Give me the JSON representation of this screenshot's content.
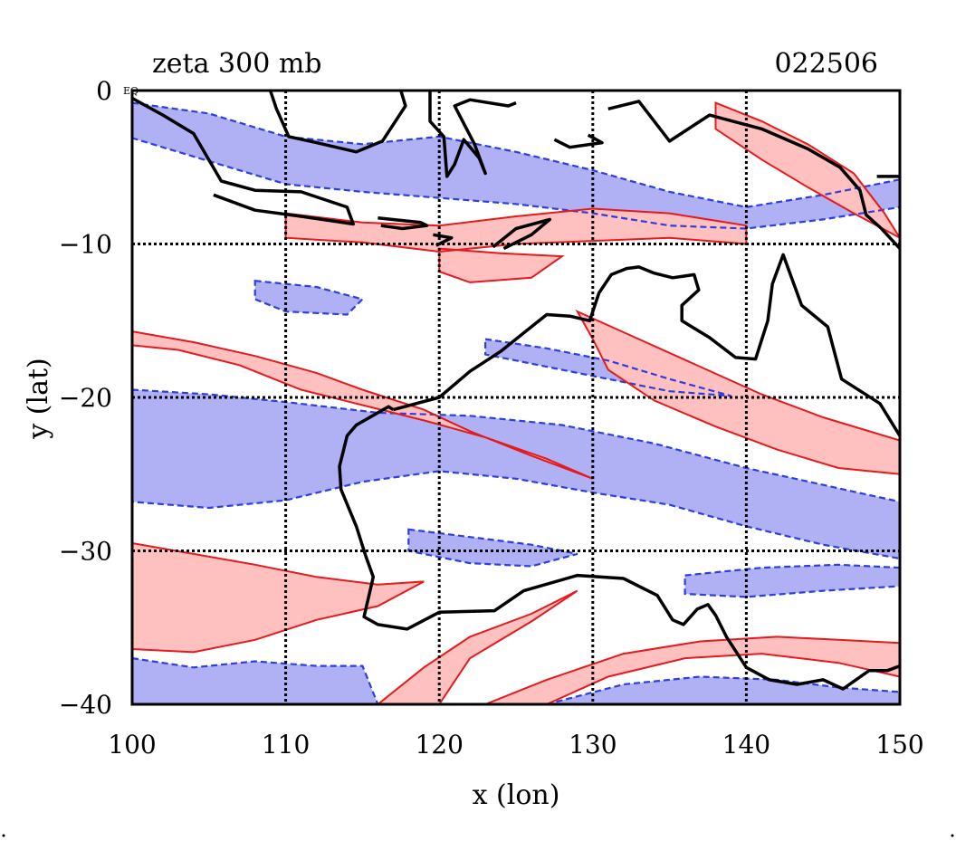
{
  "chart_data": {
    "type": "contour",
    "title_left": "zeta 300 mb",
    "title_right": "022506",
    "xlabel": "x (lon)",
    "ylabel": "y (lat)",
    "xlim": [
      100,
      150
    ],
    "ylim": [
      -40,
      0
    ],
    "x_ticks": [
      100,
      110,
      120,
      130,
      140,
      150
    ],
    "y_ticks": [
      0,
      -10,
      -20,
      -30,
      -40
    ],
    "x_tick_labels": [
      "100",
      "110",
      "120",
      "130",
      "140",
      "150"
    ],
    "y_tick_labels": [
      "0",
      "−10",
      "−20",
      "−30",
      "−40"
    ],
    "corner_label": "EQ",
    "grid": true,
    "positive_color": "#e41a1c",
    "positive_fill": "#ffc0c0",
    "negative_color": "#2c3ee0",
    "negative_fill": "#b0b0f4",
    "coastline_color": "#000000",
    "positive_bands": [
      [
        [
          100,
          -15.7
        ],
        [
          104,
          -16.4
        ],
        [
          108,
          -17.3
        ],
        [
          112,
          -18.4
        ],
        [
          115,
          -19.5
        ],
        [
          119,
          -20.8
        ],
        [
          122,
          -22.2
        ],
        [
          126,
          -23.8
        ],
        [
          130,
          -25.3
        ],
        [
          127,
          -24.0
        ],
        [
          123,
          -22.6
        ],
        [
          119,
          -21.5
        ],
        [
          115,
          -20.5
        ],
        [
          111,
          -19.5
        ],
        [
          107,
          -17.9
        ],
        [
          103,
          -16.9
        ],
        [
          100,
          -16.6
        ]
      ],
      [
        [
          129,
          -14.4
        ],
        [
          133,
          -16.2
        ],
        [
          137,
          -18.0
        ],
        [
          141,
          -19.8
        ],
        [
          145,
          -21.3
        ],
        [
          150,
          -22.8
        ],
        [
          150,
          -25.0
        ],
        [
          146,
          -24.6
        ],
        [
          142,
          -23.4
        ],
        [
          138,
          -21.9
        ],
        [
          134,
          -20.2
        ],
        [
          131,
          -18.2
        ],
        [
          130,
          -16.2
        ]
      ],
      [
        [
          100,
          -29.5
        ],
        [
          104,
          -30.2
        ],
        [
          108,
          -30.9
        ],
        [
          112,
          -31.7
        ],
        [
          116,
          -32.2
        ],
        [
          119,
          -32.0
        ],
        [
          116,
          -33.6
        ],
        [
          112,
          -34.5
        ],
        [
          108,
          -35.8
        ],
        [
          104,
          -36.6
        ],
        [
          100,
          -36.4
        ]
      ],
      [
        [
          116,
          -40.0
        ],
        [
          119,
          -37.6
        ],
        [
          122,
          -35.6
        ],
        [
          126,
          -34.1
        ],
        [
          129,
          -32.6
        ],
        [
          126,
          -34.6
        ],
        [
          122,
          -37.0
        ],
        [
          120,
          -40.0
        ]
      ],
      [
        [
          123,
          -40.0
        ],
        [
          127,
          -38.4
        ],
        [
          132,
          -36.7
        ],
        [
          137,
          -35.9
        ],
        [
          142,
          -35.6
        ],
        [
          146,
          -35.8
        ],
        [
          150,
          -36.0
        ],
        [
          150,
          -38.2
        ],
        [
          146,
          -37.3
        ],
        [
          141,
          -36.7
        ],
        [
          136,
          -37.0
        ],
        [
          131,
          -38.2
        ],
        [
          127,
          -40.0
        ]
      ],
      [
        [
          110,
          -8.0
        ],
        [
          115,
          -8.6
        ],
        [
          120,
          -8.8
        ],
        [
          125,
          -8.2
        ],
        [
          130,
          -7.7
        ],
        [
          135,
          -8.0
        ],
        [
          140,
          -8.8
        ],
        [
          140,
          -10.0
        ],
        [
          135,
          -9.6
        ],
        [
          130,
          -9.8
        ],
        [
          125,
          -10.0
        ],
        [
          120,
          -10.5
        ],
        [
          115,
          -9.9
        ],
        [
          110,
          -9.6
        ]
      ],
      [
        [
          138,
          -0.8
        ],
        [
          141,
          -2.0
        ],
        [
          144,
          -3.5
        ],
        [
          147,
          -5.4
        ],
        [
          149,
          -8.0
        ],
        [
          150,
          -9.6
        ],
        [
          147,
          -8.0
        ],
        [
          144,
          -6.3
        ],
        [
          141,
          -4.5
        ],
        [
          138,
          -2.5
        ]
      ],
      [
        [
          120,
          -10.3
        ],
        [
          124,
          -10.6
        ],
        [
          128,
          -10.8
        ],
        [
          126,
          -12.2
        ],
        [
          122,
          -12.5
        ],
        [
          120,
          -11.8
        ]
      ]
    ],
    "negative_bands": [
      [
        [
          100,
          -19.5
        ],
        [
          105,
          -19.8
        ],
        [
          110,
          -20.3
        ],
        [
          116,
          -21.0
        ],
        [
          122,
          -21.2
        ],
        [
          128,
          -21.8
        ],
        [
          134,
          -23.0
        ],
        [
          140,
          -24.6
        ],
        [
          145,
          -25.7
        ],
        [
          150,
          -26.8
        ],
        [
          150,
          -30.5
        ],
        [
          145,
          -29.6
        ],
        [
          140,
          -28.4
        ],
        [
          135,
          -27.0
        ],
        [
          130,
          -26.2
        ],
        [
          125,
          -25.3
        ],
        [
          120,
          -24.8
        ],
        [
          115,
          -25.5
        ],
        [
          110,
          -26.7
        ],
        [
          105,
          -27.2
        ],
        [
          100,
          -26.8
        ]
      ],
      [
        [
          100,
          -37.0
        ],
        [
          104,
          -37.6
        ],
        [
          108,
          -37.2
        ],
        [
          112,
          -37.5
        ],
        [
          115,
          -37.5
        ],
        [
          116,
          -40.0
        ],
        [
          100,
          -40.0
        ]
      ],
      [
        [
          127,
          -40.0
        ],
        [
          132,
          -38.7
        ],
        [
          137,
          -38.2
        ],
        [
          142,
          -38.4
        ],
        [
          146,
          -38.9
        ],
        [
          150,
          -39.2
        ],
        [
          150,
          -40.0
        ]
      ],
      [
        [
          100,
          -0.8
        ],
        [
          105,
          -1.5
        ],
        [
          110,
          -3.0
        ],
        [
          115,
          -3.5
        ],
        [
          120,
          -3.0
        ],
        [
          125,
          -4.0
        ],
        [
          130,
          -5.2
        ],
        [
          135,
          -6.6
        ],
        [
          140,
          -7.6
        ],
        [
          145,
          -6.8
        ],
        [
          150,
          -5.8
        ],
        [
          150,
          -7.6
        ],
        [
          145,
          -8.4
        ],
        [
          140,
          -9.0
        ],
        [
          135,
          -8.8
        ],
        [
          130,
          -8.0
        ],
        [
          125,
          -7.4
        ],
        [
          120,
          -7.0
        ],
        [
          115,
          -6.6
        ],
        [
          110,
          -6.1
        ],
        [
          105,
          -4.6
        ],
        [
          100,
          -3.1
        ]
      ],
      [
        [
          108,
          -12.4
        ],
        [
          112,
          -12.8
        ],
        [
          115,
          -13.6
        ],
        [
          114,
          -14.6
        ],
        [
          110,
          -14.4
        ],
        [
          108,
          -13.6
        ]
      ],
      [
        [
          123,
          -16.2
        ],
        [
          127,
          -16.8
        ],
        [
          131,
          -17.6
        ],
        [
          135,
          -18.8
        ],
        [
          139,
          -19.9
        ],
        [
          135,
          -19.6
        ],
        [
          130,
          -18.6
        ],
        [
          126,
          -17.8
        ],
        [
          123,
          -17.2
        ]
      ],
      [
        [
          118,
          -28.6
        ],
        [
          122,
          -29.1
        ],
        [
          126,
          -29.6
        ],
        [
          129,
          -30.2
        ],
        [
          126,
          -31.0
        ],
        [
          122,
          -30.8
        ],
        [
          118,
          -30.0
        ]
      ],
      [
        [
          136,
          -31.6
        ],
        [
          141,
          -31.1
        ],
        [
          146,
          -30.9
        ],
        [
          150,
          -31.1
        ],
        [
          150,
          -32.3
        ],
        [
          145,
          -32.6
        ],
        [
          140,
          -33.0
        ],
        [
          136,
          -32.8
        ]
      ]
    ],
    "coastlines": [
      [
        [
          117,
          -20.8
        ],
        [
          120,
          -20.0
        ],
        [
          122,
          -18.3
        ],
        [
          124,
          -17.0
        ],
        [
          125.5,
          -15.8
        ],
        [
          127,
          -14.6
        ],
        [
          128.5,
          -14.7
        ],
        [
          129.8,
          -15.0
        ],
        [
          130.4,
          -13.2
        ],
        [
          131.2,
          -12.0
        ],
        [
          132.2,
          -11.6
        ],
        [
          133,
          -11.5
        ],
        [
          134,
          -11.9
        ],
        [
          135.2,
          -12.2
        ],
        [
          136.6,
          -12.0
        ],
        [
          136.9,
          -13.0
        ],
        [
          135.8,
          -14.0
        ],
        [
          135.8,
          -15.0
        ],
        [
          137.6,
          -16.1
        ],
        [
          139.3,
          -17.4
        ],
        [
          140.6,
          -17.5
        ],
        [
          141.4,
          -15.0
        ],
        [
          141.7,
          -12.6
        ],
        [
          142.4,
          -10.7
        ],
        [
          143.6,
          -14.0
        ],
        [
          145.3,
          -15.4
        ],
        [
          146.2,
          -18.8
        ],
        [
          148.7,
          -20.4
        ],
        [
          150,
          -22.5
        ]
      ],
      [
        [
          150,
          -37.5
        ],
        [
          149.2,
          -37.8
        ],
        [
          148,
          -37.8
        ],
        [
          146.3,
          -39.0
        ],
        [
          145,
          -38.4
        ],
        [
          143.3,
          -38.7
        ],
        [
          141.5,
          -38.4
        ],
        [
          140,
          -37.6
        ],
        [
          138.7,
          -35.6
        ],
        [
          138,
          -34.2
        ],
        [
          137.5,
          -33.5
        ],
        [
          136.8,
          -33.8
        ],
        [
          135.9,
          -34.8
        ],
        [
          135.2,
          -34.5
        ],
        [
          134.2,
          -32.9
        ],
        [
          132,
          -31.8
        ],
        [
          129,
          -31.6
        ],
        [
          125.5,
          -32.6
        ],
        [
          123.6,
          -33.9
        ],
        [
          120,
          -34.0
        ],
        [
          117.9,
          -35.1
        ],
        [
          116,
          -34.8
        ],
        [
          115.1,
          -34.3
        ],
        [
          115.7,
          -31.7
        ],
        [
          115.2,
          -30.3
        ],
        [
          114.6,
          -28.4
        ],
        [
          113.6,
          -26.0
        ],
        [
          113.5,
          -24.5
        ],
        [
          114,
          -22.5
        ],
        [
          114.6,
          -21.8
        ],
        [
          116.7,
          -20.6
        ],
        [
          117,
          -20.8
        ]
      ],
      [
        [
          100,
          -0.5
        ],
        [
          102,
          -1.6
        ],
        [
          104,
          -2.8
        ],
        [
          105.8,
          -5.9
        ],
        [
          108,
          -6.5
        ],
        [
          111,
          -6.6
        ],
        [
          114,
          -7.6
        ],
        [
          114.4,
          -8.7
        ],
        [
          111,
          -8.2
        ],
        [
          108,
          -7.8
        ],
        [
          105.3,
          -6.8
        ]
      ],
      [
        [
          116,
          -8.3
        ],
        [
          118.8,
          -8.6
        ],
        [
          119.2,
          -8.8
        ],
        [
          117.6,
          -9.0
        ],
        [
          116.2,
          -8.8
        ]
      ],
      [
        [
          119.6,
          -9.4
        ],
        [
          120.8,
          -9.6
        ],
        [
          119.8,
          -10.1
        ]
      ],
      [
        [
          123.5,
          -10.2
        ],
        [
          125,
          -9.0
        ],
        [
          127.2,
          -8.4
        ],
        [
          126,
          -9.4
        ],
        [
          124.2,
          -10.3
        ]
      ],
      [
        [
          109,
          0
        ],
        [
          109.4,
          -1.2
        ],
        [
          110.2,
          -3.0
        ],
        [
          112,
          -3.4
        ],
        [
          114.6,
          -4.0
        ],
        [
          116.3,
          -3.3
        ],
        [
          117.8,
          -1.0
        ],
        [
          117.5,
          0
        ]
      ],
      [
        [
          119.4,
          0
        ],
        [
          119.4,
          -2.0
        ],
        [
          120.3,
          -3.0
        ],
        [
          120.5,
          -5.6
        ],
        [
          121,
          -4.8
        ],
        [
          121.6,
          -3.2
        ],
        [
          122.6,
          -4.4
        ],
        [
          123,
          -5.4
        ],
        [
          122.3,
          -3.5
        ],
        [
          121,
          -1.0
        ],
        [
          122,
          -0.6
        ],
        [
          124.5,
          -1.0
        ],
        [
          125,
          -0.8
        ]
      ],
      [
        [
          131,
          -1.2
        ],
        [
          133,
          -0.7
        ],
        [
          135,
          -3.3
        ],
        [
          137.6,
          -1.6
        ],
        [
          141,
          -2.5
        ],
        [
          144,
          -3.8
        ],
        [
          146.1,
          -5.0
        ],
        [
          147.4,
          -6.5
        ],
        [
          147.8,
          -8.1
        ],
        [
          148.8,
          -9.0
        ],
        [
          150,
          -10.3
        ]
      ],
      [
        [
          150,
          -5.6
        ],
        [
          148.5,
          -5.6
        ]
      ],
      [
        [
          127.5,
          -3.2
        ],
        [
          128.5,
          -3.7
        ],
        [
          130.6,
          -3.4
        ],
        [
          129.7,
          -2.9
        ]
      ]
    ]
  }
}
